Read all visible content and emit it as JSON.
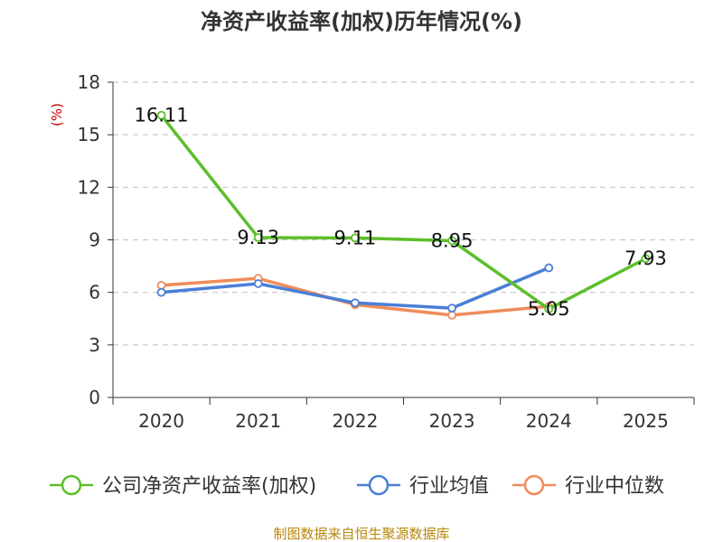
{
  "chart_data": {
    "type": "line",
    "title": "净资产收益率(加权)历年情况(%)",
    "ylabel": "(%)",
    "xlabel": "",
    "categories": [
      "2020",
      "2021",
      "2022",
      "2023",
      "2024",
      "2025"
    ],
    "ylim": [
      0,
      18
    ],
    "yticks": [
      0,
      3,
      6,
      9,
      12,
      15,
      18
    ],
    "grid": true,
    "legend_position": "bottom",
    "series": [
      {
        "name": "公司净资产收益率(加权)",
        "color": "#5cbf2a",
        "values": [
          16.11,
          9.13,
          9.11,
          8.95,
          5.05,
          7.93
        ],
        "labels": [
          "16.11",
          "9.13",
          "9.11",
          "8.95",
          "5.05",
          "7.93"
        ]
      },
      {
        "name": "行业均值",
        "color": "#4a7fd6",
        "values": [
          6.0,
          6.5,
          5.4,
          5.1,
          7.4,
          null
        ]
      },
      {
        "name": "行业中位数",
        "color": "#f08c5a",
        "values": [
          6.4,
          6.8,
          5.3,
          4.7,
          5.2,
          null
        ]
      }
    ],
    "source": "制图数据来自恒生聚源数据库"
  }
}
